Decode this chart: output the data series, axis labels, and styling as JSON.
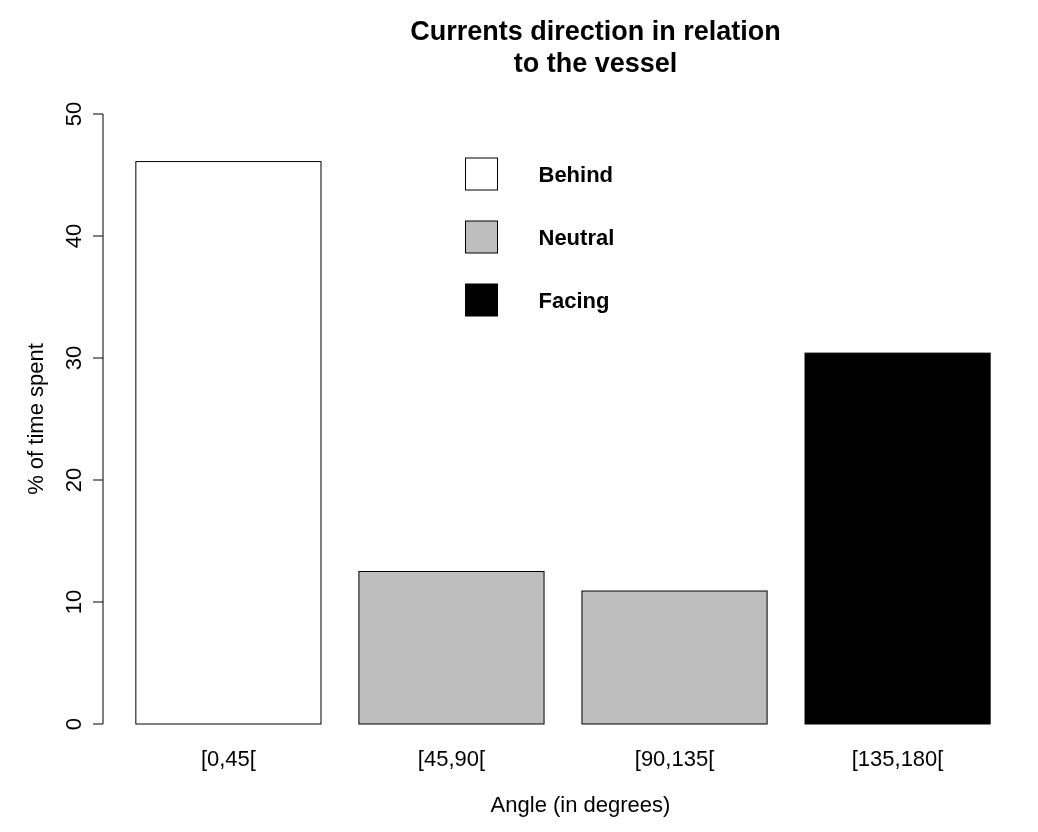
{
  "chart_data": {
    "type": "bar",
    "title": "Currents direction in relation to the vessel",
    "xlabel": "Angle (in degrees)",
    "ylabel": "% of time spent",
    "categories": [
      "[0,45[",
      "[45,90[",
      "[90,135[",
      "[135,180["
    ],
    "series": [
      {
        "name": "Behind",
        "color": "#ffffff",
        "values": [
          46.1,
          null,
          null,
          null
        ]
      },
      {
        "name": "Neutral",
        "color": "#bebebe",
        "values": [
          null,
          12.5,
          10.9,
          null
        ]
      },
      {
        "name": "Facing",
        "color": "#000000",
        "values": [
          null,
          null,
          null,
          30.4
        ]
      }
    ],
    "ylim": [
      0,
      50
    ],
    "yticks": [
      0,
      10,
      20,
      30,
      40,
      50
    ],
    "legend": "top",
    "grid": false
  }
}
